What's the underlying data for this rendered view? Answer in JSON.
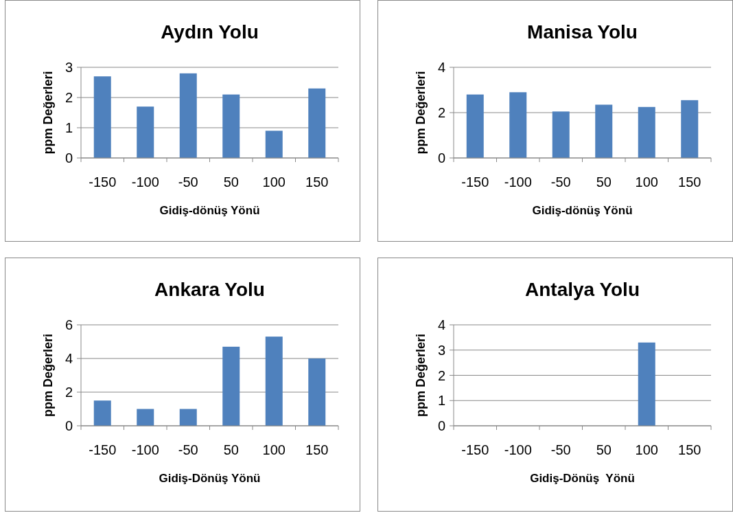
{
  "chart_data": [
    {
      "type": "bar",
      "title": "Aydın Yolu",
      "xlabel": "Gidiş-dönüş Yönü",
      "ylabel": "ppm Değerleri",
      "categories": [
        "-150",
        "-100",
        "-50",
        "50",
        "100",
        "150"
      ],
      "values": [
        2.7,
        1.7,
        2.8,
        2.1,
        0.9,
        2.3
      ],
      "color": "#4f81bd",
      "ylim": [
        0,
        3
      ],
      "yticks": [
        0,
        1,
        2,
        3
      ],
      "grid": "y"
    },
    {
      "type": "bar",
      "title": "Manisa Yolu",
      "xlabel": "Gidiş-dönüş Yönü",
      "ylabel": "ppm Değerleri",
      "categories": [
        "-150",
        "-100",
        "-50",
        "50",
        "100",
        "150"
      ],
      "values": [
        2.8,
        2.9,
        2.05,
        2.35,
        2.25,
        2.55
      ],
      "color": "#4f81bd",
      "ylim": [
        0,
        4
      ],
      "yticks": [
        0,
        2,
        4
      ],
      "grid": "y"
    },
    {
      "type": "bar",
      "title": "Ankara Yolu",
      "xlabel": "Gidiş-Dönüş Yönü",
      "ylabel": "ppm Değerleri",
      "categories": [
        "-150",
        "-100",
        "-50",
        "50",
        "100",
        "150"
      ],
      "values": [
        1.5,
        1.0,
        1.0,
        4.7,
        5.3,
        4.0
      ],
      "color": "#4f81bd",
      "ylim": [
        0,
        6
      ],
      "yticks": [
        0,
        2,
        4,
        6
      ],
      "grid": "y"
    },
    {
      "type": "bar",
      "title": "Antalya Yolu",
      "xlabel": "Gidiş-Dönüş  Yönü",
      "ylabel": "ppm Değerleri",
      "categories": [
        "-150",
        "-100",
        "-50",
        "50",
        "100",
        "150"
      ],
      "values": [
        null,
        null,
        null,
        null,
        3.3,
        null
      ],
      "color": "#4f81bd",
      "ylim": [
        0,
        4
      ],
      "yticks": [
        0,
        1,
        2,
        3,
        4
      ],
      "grid": "y"
    }
  ]
}
